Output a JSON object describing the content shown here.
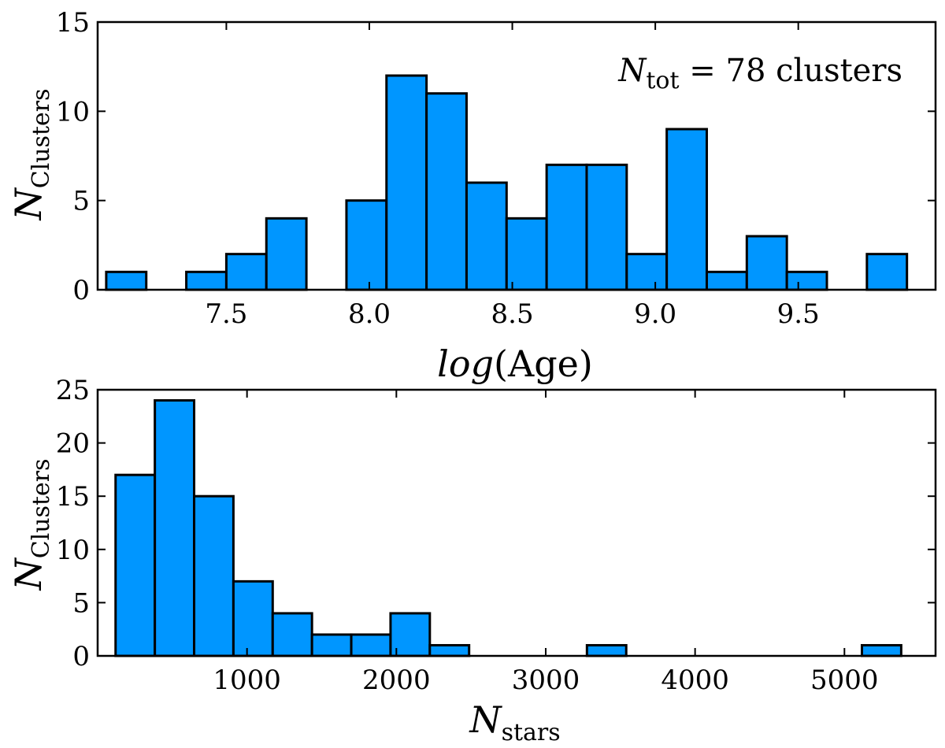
{
  "chart_data": [
    {
      "type": "bar",
      "title": "",
      "xlabel": "log(Age)",
      "xlabel_parts": {
        "italic": "log",
        "rest": "(Age)"
      },
      "ylabel_parts": {
        "main": "N",
        "sub": "Clusters"
      },
      "xlim": [
        7.05,
        9.98
      ],
      "ylim": [
        0,
        15
      ],
      "xticks": [
        7.5,
        8.0,
        8.5,
        9.0,
        9.5
      ],
      "xtick_labels": [
        "7.5",
        "8.0",
        "8.5",
        "9.0",
        "9.5"
      ],
      "yticks": [
        0,
        5,
        10,
        15
      ],
      "ytick_labels": [
        "0",
        "5",
        "10",
        "15"
      ],
      "bin_edges": [
        7.08,
        7.22,
        7.36,
        7.5,
        7.64,
        7.78,
        7.92,
        8.06,
        8.2,
        8.34,
        8.48,
        8.62,
        8.76,
        8.9,
        9.04,
        9.18,
        9.32,
        9.46,
        9.6,
        9.74,
        9.88
      ],
      "counts": [
        1,
        0,
        1,
        2,
        4,
        0,
        5,
        12,
        11,
        6,
        4,
        7,
        7,
        2,
        9,
        1,
        3,
        1,
        0,
        2
      ],
      "fill_color": "#0096ff",
      "edge_color": "#000000",
      "annotation": {
        "main": "N",
        "sub": "tot",
        "rest": " = 78 clusters"
      }
    },
    {
      "type": "bar",
      "title": "",
      "xlabel_parts": {
        "main": "N",
        "sub": "stars"
      },
      "ylabel_parts": {
        "main": "N",
        "sub": "Clusters"
      },
      "xlim": [
        0,
        5610
      ],
      "ylim": [
        0,
        25
      ],
      "xticks": [
        1000,
        2000,
        3000,
        4000,
        5000
      ],
      "xtick_labels": [
        "1000",
        "2000",
        "3000",
        "4000",
        "5000"
      ],
      "yticks": [
        0,
        5,
        10,
        15,
        20,
        25
      ],
      "ytick_labels": [
        "0",
        "5",
        "10",
        "15",
        "20",
        "25"
      ],
      "bin_edges": [
        120,
        383,
        646,
        909,
        1172,
        1435,
        1698,
        1961,
        2224,
        2487,
        2750,
        3013,
        3276,
        3539,
        3802,
        4065,
        4328,
        4591,
        4854,
        5117,
        5380
      ],
      "counts": [
        17,
        24,
        15,
        7,
        4,
        2,
        2,
        4,
        1,
        0,
        0,
        0,
        1,
        0,
        0,
        0,
        0,
        0,
        0,
        1
      ],
      "fill_color": "#0096ff",
      "edge_color": "#000000"
    }
  ]
}
